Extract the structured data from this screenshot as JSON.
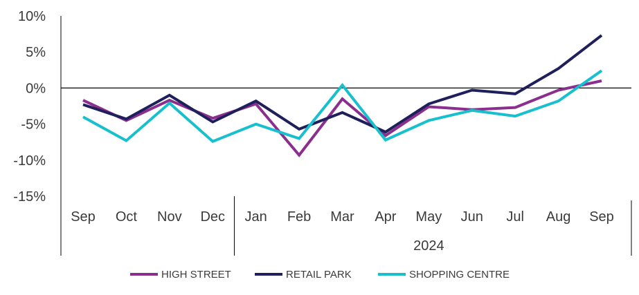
{
  "chart_data": {
    "type": "line",
    "title": "",
    "xlabel": "",
    "ylabel": "",
    "categories": [
      "Sep",
      "Oct",
      "Nov",
      "Dec",
      "Jan",
      "Feb",
      "Mar",
      "Apr",
      "May",
      "Jun",
      "Jul",
      "Aug",
      "Sep"
    ],
    "category_group_label": "2024",
    "ylim": [
      -15,
      10
    ],
    "yticks": [
      10,
      5,
      0,
      -5,
      -10,
      -15
    ],
    "ytick_labels": [
      "10%",
      "5%",
      "0%",
      "-5%",
      "-10%",
      "-15%"
    ],
    "grid": false,
    "zero_line": true,
    "legend_position": "bottom",
    "series": [
      {
        "name": "HIGH STREET",
        "color": "#8b2f8f",
        "values": [
          -1.7,
          -4.5,
          -1.7,
          -4.2,
          -2.2,
          -9.3,
          -1.5,
          -6.6,
          -2.6,
          -3.0,
          -2.7,
          -0.3,
          1.0
        ]
      },
      {
        "name": "RETAIL PARK",
        "color": "#1f1f5c",
        "values": [
          -2.3,
          -4.3,
          -1.0,
          -4.7,
          -1.8,
          -5.7,
          -3.4,
          -6.1,
          -2.2,
          -0.3,
          -0.8,
          2.7,
          7.3
        ]
      },
      {
        "name": "SHOPPING CENTRE",
        "color": "#17c0cc",
        "values": [
          -4.0,
          -7.3,
          -2.1,
          -7.4,
          -5.0,
          -7.0,
          0.4,
          -7.2,
          -4.5,
          -3.1,
          -3.9,
          -1.8,
          2.4
        ]
      }
    ]
  }
}
